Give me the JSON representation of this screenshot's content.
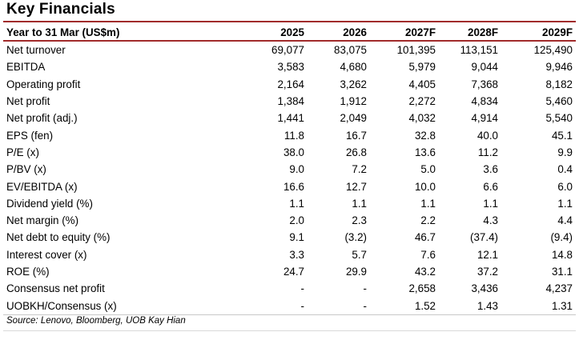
{
  "title": "Key Financials",
  "table": {
    "headers": [
      "Year to 31 Mar (US$m)",
      "2025",
      "2026",
      "2027F",
      "2028F",
      "2029F"
    ],
    "rows": [
      [
        "Net turnover",
        "69,077",
        "83,075",
        "101,395",
        "113,151",
        "125,490"
      ],
      [
        "EBITDA",
        "3,583",
        "4,680",
        "5,979",
        "9,044",
        "9,946"
      ],
      [
        "Operating profit",
        "2,164",
        "3,262",
        "4,405",
        "7,368",
        "8,182"
      ],
      [
        "Net profit",
        "1,384",
        "1,912",
        "2,272",
        "4,834",
        "5,460"
      ],
      [
        "Net profit (adj.)",
        "1,441",
        "2,049",
        "4,032",
        "4,914",
        "5,540"
      ],
      [
        "EPS (fen)",
        "11.8",
        "16.7",
        "32.8",
        "40.0",
        "45.1"
      ],
      [
        "P/E (x)",
        "38.0",
        "26.8",
        "13.6",
        "11.2",
        "9.9"
      ],
      [
        "P/BV (x)",
        "9.0",
        "7.2",
        "5.0",
        "3.6",
        "0.4"
      ],
      [
        "EV/EBITDA (x)",
        "16.6",
        "12.7",
        "10.0",
        "6.6",
        "6.0"
      ],
      [
        "Dividend yield (%)",
        "1.1",
        "1.1",
        "1.1",
        "1.1",
        "1.1"
      ],
      [
        "Net margin (%)",
        "2.0",
        "2.3",
        "2.2",
        "4.3",
        "4.4"
      ],
      [
        "Net debt to equity (%)",
        "9.1",
        "(3.2)",
        "46.7",
        "(37.4)",
        "(9.4)"
      ],
      [
        "Interest cover (x)",
        "3.3",
        "5.7",
        "7.6",
        "12.1",
        "14.8"
      ],
      [
        "ROE (%)",
        "24.7",
        "29.9",
        "43.2",
        "37.2",
        "31.1"
      ],
      [
        "Consensus net profit",
        "-",
        "-",
        "2,658",
        "3,436",
        "4,237"
      ],
      [
        "UOBKH/Consensus (x)",
        "-",
        "-",
        "1.52",
        "1.43",
        "1.31"
      ]
    ]
  },
  "source": "Source: Lenovo, Bloomberg, UOB Kay Hian",
  "colors": {
    "accent_rule": "#a12b2b"
  }
}
